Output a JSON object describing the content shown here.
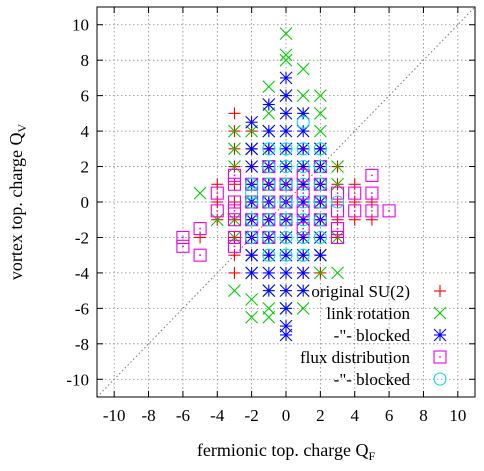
{
  "chart_data": {
    "type": "scatter",
    "xlabel": "fermionic top. charge Q",
    "xlabel_sub": "F",
    "ylabel": "vortex top. charge Q",
    "ylabel_sub": "V",
    "xlim": [
      -11,
      11
    ],
    "ylim": [
      -11,
      11
    ],
    "xticks": [
      -10,
      -8,
      -6,
      -4,
      -2,
      0,
      2,
      4,
      6,
      8,
      10
    ],
    "yticks": [
      -10,
      -8,
      -6,
      -4,
      -2,
      0,
      2,
      4,
      6,
      8,
      10
    ],
    "grid": true,
    "diagonal_reference": true,
    "legend_position": "bottom-right",
    "series": [
      {
        "name": "original SU(2)",
        "marker": "plus",
        "color": "#ff0000",
        "points": [
          [
            -3,
            5
          ],
          [
            -3,
            4
          ],
          [
            -3,
            3
          ],
          [
            -3,
            2
          ],
          [
            -3,
            1
          ],
          [
            -3,
            0
          ],
          [
            -3,
            -1
          ],
          [
            -3,
            -2
          ],
          [
            -3,
            -3
          ],
          [
            -3,
            -4
          ],
          [
            -4,
            1
          ],
          [
            -4,
            0
          ],
          [
            -4,
            -1
          ],
          [
            -5,
            -2
          ],
          [
            -2,
            4
          ],
          [
            -2,
            3
          ],
          [
            -2,
            2
          ],
          [
            -2,
            1
          ],
          [
            -2,
            0
          ],
          [
            -2,
            -1
          ],
          [
            -2,
            -2
          ],
          [
            -2,
            -3
          ],
          [
            -1,
            3
          ],
          [
            -1,
            2
          ],
          [
            -1,
            1
          ],
          [
            -1,
            0
          ],
          [
            -1,
            -1
          ],
          [
            -1,
            -2
          ],
          [
            -1,
            -3
          ],
          [
            0,
            2
          ],
          [
            0,
            1
          ],
          [
            0,
            0
          ],
          [
            0,
            -1
          ],
          [
            0,
            -2
          ],
          [
            1,
            3
          ],
          [
            1,
            2
          ],
          [
            1,
            1
          ],
          [
            1,
            0
          ],
          [
            1,
            -1
          ],
          [
            1,
            -2
          ],
          [
            1,
            -3
          ],
          [
            1,
            -4
          ],
          [
            2,
            3
          ],
          [
            2,
            2
          ],
          [
            2,
            1
          ],
          [
            2,
            0
          ],
          [
            2,
            -1
          ],
          [
            2,
            -2
          ],
          [
            2,
            -3
          ],
          [
            2,
            -4
          ],
          [
            3,
            2
          ],
          [
            3,
            1
          ],
          [
            3,
            0
          ],
          [
            3,
            -1
          ],
          [
            3,
            -2
          ],
          [
            4,
            1
          ],
          [
            4,
            0
          ],
          [
            4,
            -1
          ],
          [
            5,
            0
          ],
          [
            5,
            -1
          ]
        ]
      },
      {
        "name": "link rotation",
        "marker": "cross",
        "color": "#00cc00",
        "points": [
          [
            -3,
            4
          ],
          [
            -3,
            3
          ],
          [
            -3,
            2
          ],
          [
            -3,
            -1
          ],
          [
            -3,
            -2
          ],
          [
            -4,
            -1
          ],
          [
            -5,
            0.5
          ],
          [
            -2,
            -6.5
          ],
          [
            -2,
            -5.5
          ],
          [
            -2,
            -4
          ],
          [
            -2,
            -3
          ],
          [
            -2,
            3
          ],
          [
            -2,
            4
          ],
          [
            -1,
            6.5
          ],
          [
            -1,
            5
          ],
          [
            -1,
            4
          ],
          [
            -1,
            -5
          ],
          [
            -1,
            -6
          ],
          [
            -1,
            -6.5
          ],
          [
            0,
            9.5
          ],
          [
            0,
            8.3
          ],
          [
            0,
            8
          ],
          [
            0,
            6
          ],
          [
            0,
            -6
          ],
          [
            1,
            7.5
          ],
          [
            1,
            6
          ],
          [
            1,
            5
          ],
          [
            1,
            -5
          ],
          [
            1,
            -6
          ],
          [
            2,
            6
          ],
          [
            2,
            5
          ],
          [
            2,
            4
          ],
          [
            2,
            -3
          ],
          [
            2,
            -4
          ],
          [
            3,
            2
          ],
          [
            3,
            1
          ],
          [
            3,
            -2
          ],
          [
            -3,
            -5
          ],
          [
            3,
            -4
          ]
        ]
      },
      {
        "name": "-\"- blocked",
        "marker": "star",
        "color": "#0000ff",
        "points": [
          [
            -2,
            4.5
          ],
          [
            -2,
            3
          ],
          [
            -2,
            2
          ],
          [
            -2,
            1
          ],
          [
            -2,
            0
          ],
          [
            -2,
            -1
          ],
          [
            -2,
            -2
          ],
          [
            -2,
            -3
          ],
          [
            -2,
            -4
          ],
          [
            -1,
            5.5
          ],
          [
            -1,
            4
          ],
          [
            -1,
            3
          ],
          [
            -1,
            2
          ],
          [
            -1,
            1
          ],
          [
            -1,
            0
          ],
          [
            -1,
            -1
          ],
          [
            -1,
            -2
          ],
          [
            -1,
            -3
          ],
          [
            -1,
            -4
          ],
          [
            -1,
            -5
          ],
          [
            0,
            7
          ],
          [
            0,
            6
          ],
          [
            0,
            5
          ],
          [
            0,
            4
          ],
          [
            0,
            3
          ],
          [
            0,
            2
          ],
          [
            0,
            1
          ],
          [
            0,
            0
          ],
          [
            0,
            -1
          ],
          [
            0,
            -2
          ],
          [
            0,
            -3
          ],
          [
            0,
            -4
          ],
          [
            0,
            -5
          ],
          [
            0,
            -6
          ],
          [
            0,
            -7
          ],
          [
            0,
            -7.5
          ],
          [
            1,
            5
          ],
          [
            1,
            4
          ],
          [
            1,
            3
          ],
          [
            1,
            2
          ],
          [
            1,
            1
          ],
          [
            1,
            0
          ],
          [
            1,
            -1
          ],
          [
            1,
            -2
          ],
          [
            1,
            -3
          ],
          [
            1,
            -4
          ],
          [
            1,
            -5
          ],
          [
            2,
            3
          ],
          [
            2,
            2
          ],
          [
            2,
            1
          ],
          [
            2,
            0
          ],
          [
            2,
            -1
          ],
          [
            2,
            -2
          ],
          [
            2,
            -3
          ]
        ]
      },
      {
        "name": "flux distribution",
        "marker": "boxdot",
        "color": "#ee00ee",
        "points": [
          [
            -6,
            -2
          ],
          [
            -6,
            -2.5
          ],
          [
            -5,
            -1.5
          ],
          [
            -5,
            -3
          ],
          [
            -4,
            0.5
          ],
          [
            -4,
            -0.5
          ],
          [
            -3,
            1.5
          ],
          [
            -3,
            1
          ],
          [
            -3,
            0
          ],
          [
            -3,
            -0.5
          ],
          [
            -3,
            -1
          ],
          [
            -3,
            -2
          ],
          [
            -3,
            -2.5
          ],
          [
            -2,
            1
          ],
          [
            -2,
            0
          ],
          [
            -2,
            -1
          ],
          [
            -2,
            -2
          ],
          [
            -1,
            2
          ],
          [
            -1,
            1
          ],
          [
            -1,
            0
          ],
          [
            -1,
            -1
          ],
          [
            -1,
            -2
          ],
          [
            0,
            1
          ],
          [
            0,
            0
          ],
          [
            0,
            -1
          ],
          [
            1,
            1.5
          ],
          [
            1,
            0.5
          ],
          [
            1,
            -0.5
          ],
          [
            1,
            -1.5
          ],
          [
            2,
            2
          ],
          [
            2,
            1
          ],
          [
            2,
            0
          ],
          [
            2,
            -1
          ],
          [
            3,
            0.5
          ],
          [
            3,
            -0.5
          ],
          [
            3,
            -1.5
          ],
          [
            3,
            -2
          ],
          [
            4,
            0.5
          ],
          [
            4,
            -0.5
          ],
          [
            5,
            1.5
          ],
          [
            5,
            0.5
          ],
          [
            5,
            -0.5
          ],
          [
            6,
            -0.5
          ]
        ]
      },
      {
        "name": "-\"- blocked",
        "marker": "circle",
        "color": "#00dddd",
        "points": [
          [
            -2,
            1
          ],
          [
            -2,
            0.5
          ],
          [
            -2,
            0
          ],
          [
            -2,
            -1
          ],
          [
            -2,
            -2
          ],
          [
            -1,
            3
          ],
          [
            -1,
            2
          ],
          [
            -1,
            1
          ],
          [
            -1,
            0
          ],
          [
            -1,
            -1
          ],
          [
            -1,
            -2
          ],
          [
            -1,
            -3
          ],
          [
            0,
            3
          ],
          [
            0,
            2
          ],
          [
            0,
            1
          ],
          [
            0,
            0
          ],
          [
            0,
            -1
          ],
          [
            0,
            -2
          ],
          [
            0,
            -3
          ],
          [
            1,
            4.5
          ],
          [
            1,
            3
          ],
          [
            1,
            2
          ],
          [
            1,
            1
          ],
          [
            1,
            0
          ],
          [
            1,
            -1
          ],
          [
            1,
            -2
          ],
          [
            1,
            -3
          ],
          [
            2,
            3
          ],
          [
            2,
            2
          ],
          [
            2,
            1
          ],
          [
            2,
            0
          ],
          [
            2,
            -1
          ],
          [
            2,
            -2
          ],
          [
            3,
            0
          ]
        ]
      }
    ]
  }
}
